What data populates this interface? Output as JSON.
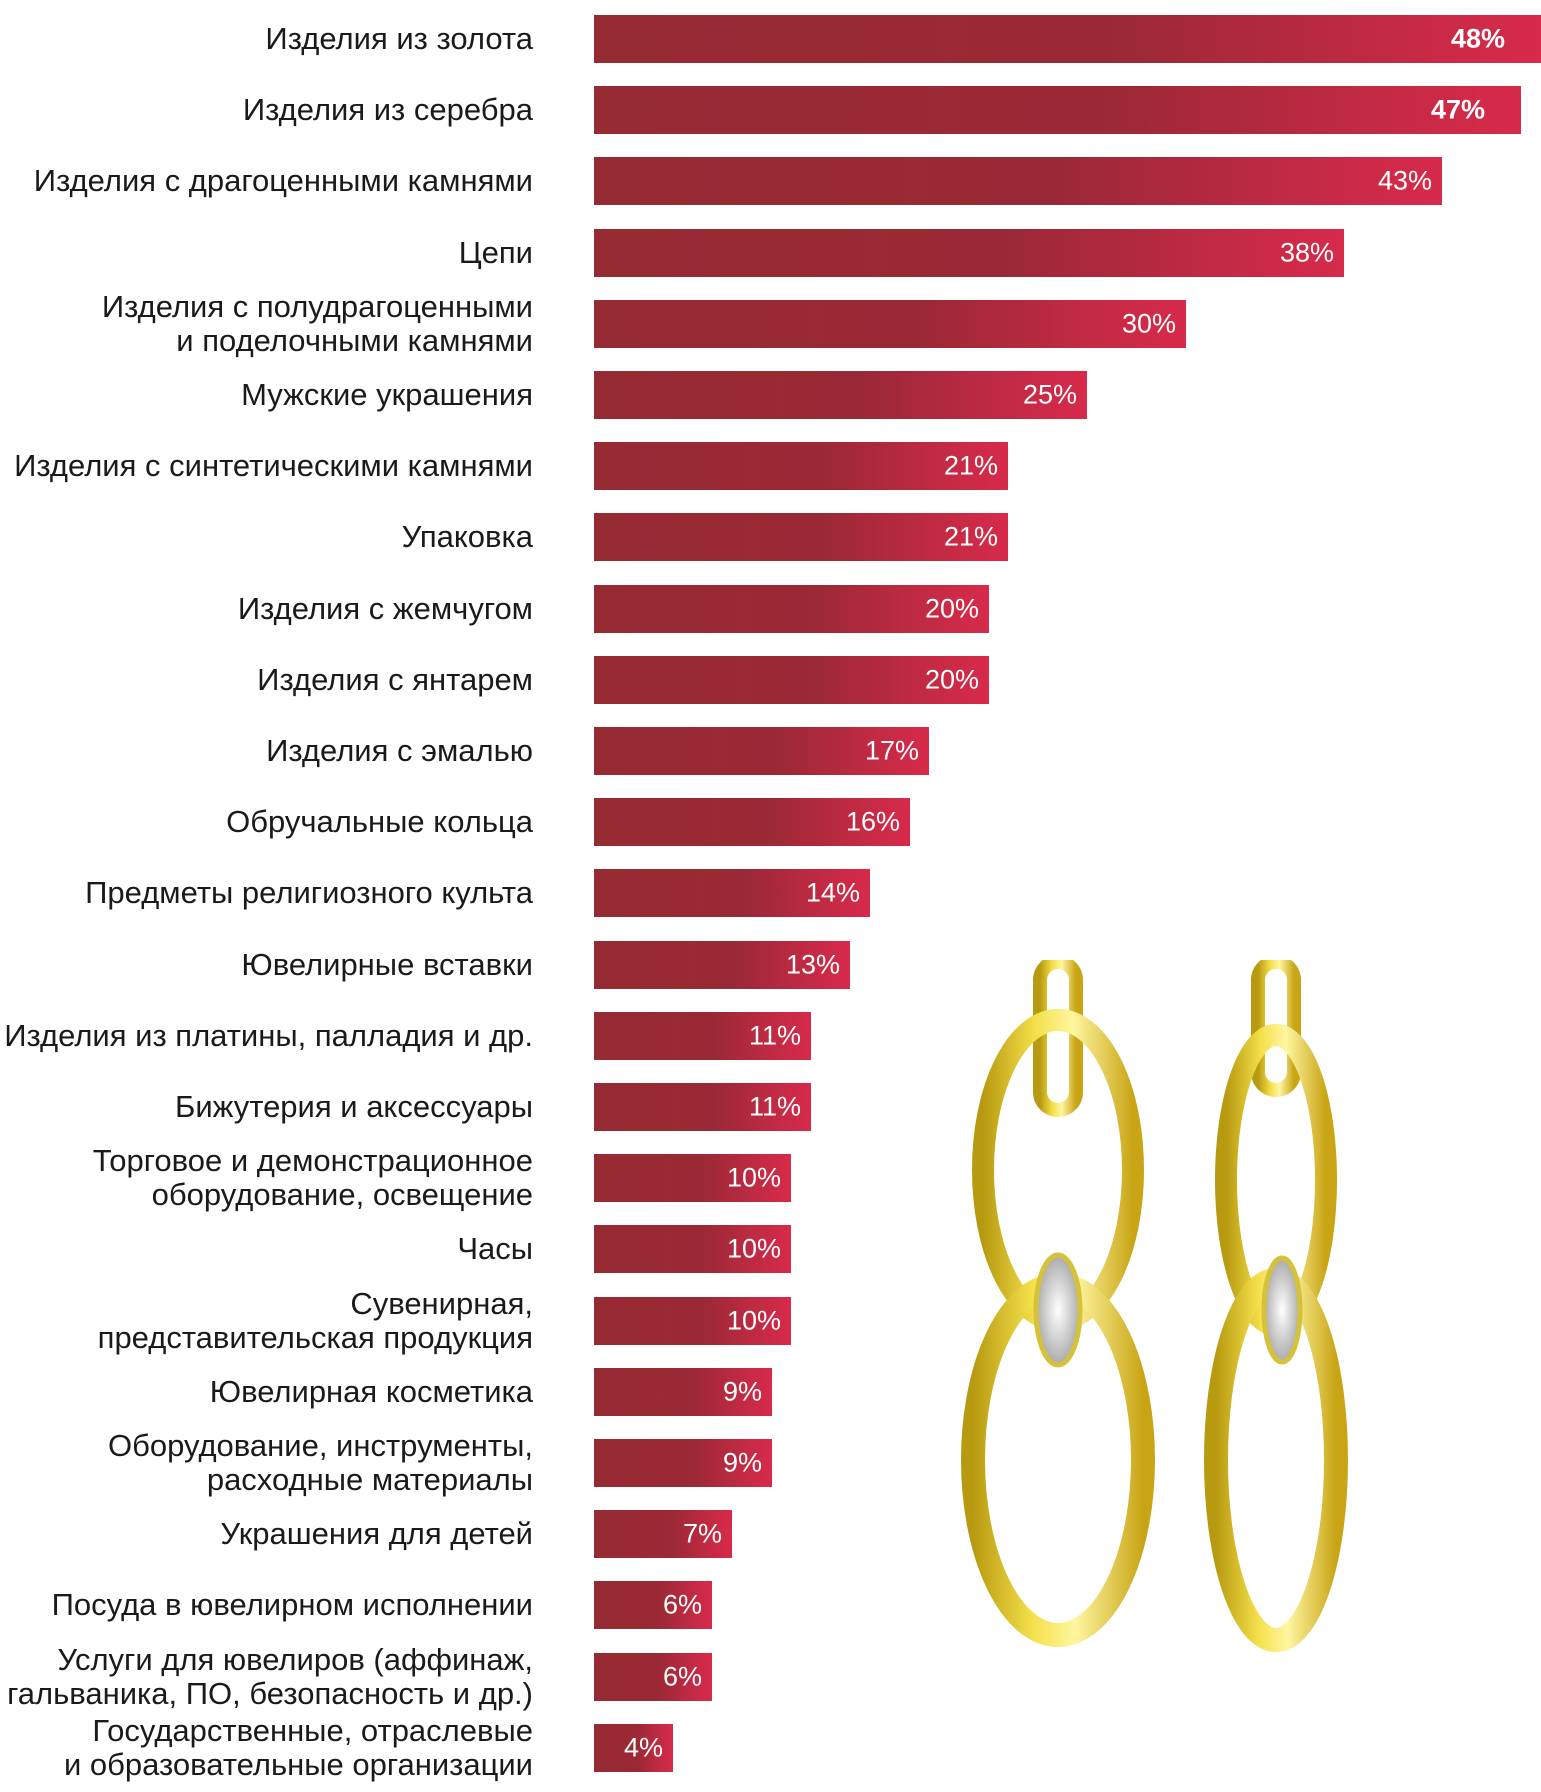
{
  "chart_data": {
    "type": "bar",
    "orientation": "horizontal",
    "title": "",
    "xlabel": "",
    "ylabel": "",
    "xlim": [
      0,
      48
    ],
    "grid": false,
    "legend": "none",
    "colors": {
      "bar_dark": "#962a33",
      "bar_light": "#d82a4b",
      "label": "#ffffff"
    },
    "categories": [
      "Изделия из золота",
      "Изделия из серебра",
      "Изделия с драгоценными камнями",
      "Цепи",
      "Изделия с полудрагоценными\nи поделочными камнями",
      "Мужские украшения",
      "Изделия с синтетическими камнями",
      "Упаковка",
      "Изделия с жемчугом",
      "Изделия с янтарем",
      "Изделия с эмалью",
      "Обручальные кольца",
      "Предметы религиозного культа",
      "Ювелирные вставки",
      "Изделия из платины, палладия и др.",
      "Бижутерия и аксессуары",
      "Торговое и демонстрационное\nоборудование, освещение",
      "Часы",
      "Сувенирная,\nпредставительская продукция",
      "Ювелирная косметика",
      "Оборудование, инструменты,\nрасходные материалы",
      "Украшения для детей",
      "Посуда в ювелирном исполнении",
      "Услуги для ювелиров (аффинаж,\nгальваника, ПО, безопасность и др.)",
      "Государственные, отраслевые\nи образовательные организации"
    ],
    "values": [
      48,
      47,
      43,
      38,
      30,
      25,
      21,
      21,
      20,
      20,
      17,
      16,
      14,
      13,
      11,
      11,
      10,
      10,
      10,
      9,
      9,
      7,
      6,
      6,
      4
    ],
    "data_labels": [
      "48%",
      "47%",
      "43%",
      "38%",
      "30%",
      "25%",
      "21%",
      "21%",
      "20%",
      "20%",
      "17%",
      "16%",
      "14%",
      "13%",
      "11%",
      "11%",
      "10%",
      "10%",
      "10%",
      "9%",
      "9%",
      "7%",
      "6%",
      "6%",
      "4%"
    ]
  },
  "decoration": {
    "image": "gold-earrings-illustration"
  }
}
